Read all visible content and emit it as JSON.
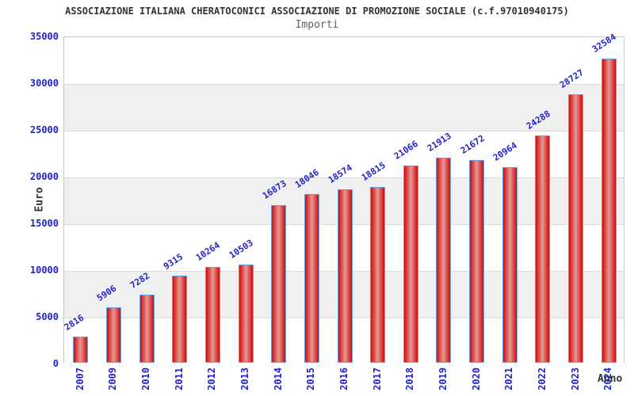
{
  "chart_data": {
    "type": "bar",
    "title": "ASSOCIAZIONE ITALIANA CHERATOCONICI ASSOCIAZIONE DI PROMOZIONE SOCIALE (c.f.97010940175)",
    "subtitle": "Importi",
    "xlabel": "Anno",
    "ylabel": "Euro",
    "categories": [
      "2007",
      "2009",
      "2010",
      "2011",
      "2012",
      "2013",
      "2014",
      "2015",
      "2016",
      "2017",
      "2018",
      "2019",
      "2020",
      "2021",
      "2022",
      "2023",
      "2024"
    ],
    "values": [
      2816,
      5906,
      7282,
      9315,
      10264,
      10503,
      16873,
      18046,
      18574,
      18815,
      21066,
      21913,
      21672,
      20964,
      24288,
      28727,
      32584
    ],
    "ylim": [
      0,
      35000
    ],
    "yticks": [
      0,
      5000,
      10000,
      15000,
      20000,
      25000,
      30000,
      35000
    ],
    "grid": "horizontal gridlines every 5000 with alternating background bands",
    "legend": "none",
    "colors": {
      "bar_edge_red": "#c41212",
      "bar_center_pink": "#e09a96",
      "bar_border_blue": "#69a1e6",
      "label_blue": "#2222cc",
      "title_dark": "#333333",
      "subtitle_gray": "#606060",
      "band_gray": "#f0f0f0",
      "band_white": "#ffffff",
      "gridline_gray": "#dcdcdc",
      "plot_border_gray": "#c9c9c9"
    }
  }
}
